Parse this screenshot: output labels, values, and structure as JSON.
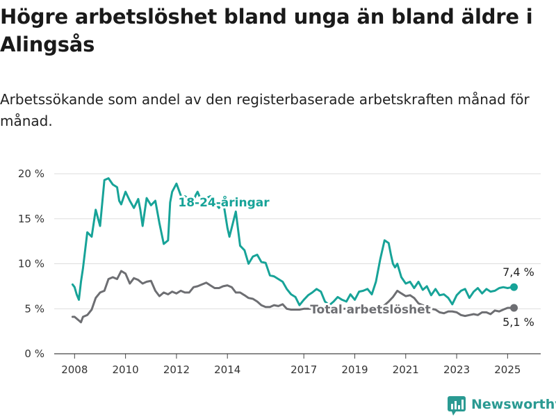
{
  "title": "Högre arbetslöshet bland unga än bland äldre i Alingsås",
  "subtitle": "Arbetssökande som andel av den registerbaserade arbetskraften månad för månad.",
  "brand": "Newsworthy",
  "colors": {
    "youth": "#17a398",
    "total": "#6d6e72",
    "grid": "#dddddd"
  },
  "chart_data": {
    "type": "line",
    "x_unit": "decimal year",
    "y_unit": "%",
    "ylim": [
      0,
      20
    ],
    "y_ticks": [
      0,
      5,
      10,
      15,
      20
    ],
    "y_tick_labels": [
      "0 %",
      "5 %",
      "10 %",
      "15 %",
      "20 %"
    ],
    "x_ticks": [
      2008,
      2010,
      2012,
      2014,
      2017,
      2019,
      2021,
      2023,
      2025
    ],
    "grid": true,
    "series": [
      {
        "name": "18-24-åringar",
        "color_key": "youth",
        "end_label": "7,4 %",
        "x": [
          2007.92,
          2008.0,
          2008.08,
          2008.17,
          2008.25,
          2008.33,
          2008.5,
          2008.67,
          2008.83,
          2009.0,
          2009.17,
          2009.33,
          2009.5,
          2009.67,
          2009.75,
          2009.83,
          2010.0,
          2010.17,
          2010.33,
          2010.5,
          2010.58,
          2010.67,
          2010.83,
          2011.0,
          2011.17,
          2011.33,
          2011.5,
          2011.67,
          2011.75,
          2011.83,
          2012.0,
          2012.17,
          2012.25,
          2012.33,
          2012.5,
          2012.67,
          2012.75,
          2012.83,
          2013.0,
          2013.17,
          2013.33,
          2013.5,
          2013.67,
          2013.83,
          2014.0,
          2014.08,
          2014.17,
          2014.33,
          2014.5,
          2014.67,
          2014.83,
          2015.0,
          2015.17,
          2015.33,
          2015.5,
          2015.67,
          2015.83,
          2016.0,
          2016.17,
          2016.33,
          2016.5,
          2016.67,
          2016.83,
          2017.0,
          2017.17,
          2017.33,
          2017.5,
          2017.67,
          2017.83,
          2018.0,
          2018.17,
          2018.33,
          2018.5,
          2018.67,
          2018.83,
          2019.0,
          2019.17,
          2019.33,
          2019.5,
          2019.67,
          2019.83,
          2020.0,
          2020.17,
          2020.33,
          2020.42,
          2020.5,
          2020.58,
          2020.67,
          2020.83,
          2021.0,
          2021.17,
          2021.33,
          2021.5,
          2021.67,
          2021.83,
          2022.0,
          2022.17,
          2022.33,
          2022.5,
          2022.67,
          2022.83,
          2023.0,
          2023.17,
          2023.33,
          2023.5,
          2023.67,
          2023.83,
          2024.0,
          2024.17,
          2024.33,
          2024.5,
          2024.67,
          2024.83,
          2025.0,
          2025.17,
          2025.25
        ],
        "y": [
          7.7,
          7.4,
          6.6,
          6.0,
          8.0,
          9.5,
          13.5,
          13.0,
          16.0,
          14.2,
          19.3,
          19.5,
          18.8,
          18.5,
          17.0,
          16.6,
          18.0,
          17.0,
          16.2,
          17.2,
          16.0,
          14.2,
          17.3,
          16.5,
          17.0,
          14.5,
          12.2,
          12.6,
          16.8,
          18.0,
          18.9,
          17.6,
          16.8,
          17.5,
          17.2,
          16.9,
          17.6,
          18.0,
          16.8,
          17.3,
          17.5,
          16.8,
          16.2,
          17.0,
          14.0,
          13.0,
          14.0,
          15.8,
          12.0,
          11.5,
          10.0,
          10.8,
          11.0,
          10.2,
          10.1,
          8.7,
          8.6,
          8.3,
          8.0,
          7.2,
          6.6,
          6.3,
          5.4,
          6.0,
          6.5,
          6.8,
          7.2,
          6.9,
          5.8,
          5.4,
          5.8,
          6.3,
          6.0,
          5.8,
          6.6,
          6.0,
          6.9,
          7.0,
          7.2,
          6.6,
          8.0,
          10.5,
          12.6,
          12.3,
          11.0,
          10.0,
          9.6,
          10.0,
          8.5,
          7.8,
          8.0,
          7.3,
          8.0,
          7.1,
          7.5,
          6.5,
          7.2,
          6.5,
          6.6,
          6.2,
          5.5,
          6.5,
          7.0,
          7.2,
          6.2,
          6.9,
          7.3,
          6.7,
          7.2,
          6.9,
          7.0,
          7.3,
          7.4,
          7.3,
          7.4,
          7.4
        ]
      },
      {
        "name": "Total arbetslöshet",
        "color_key": "total",
        "end_label": "5,1 %",
        "x": [
          2007.92,
          2008.0,
          2008.17,
          2008.25,
          2008.33,
          2008.5,
          2008.67,
          2008.83,
          2009.0,
          2009.17,
          2009.33,
          2009.5,
          2009.67,
          2009.83,
          2010.0,
          2010.17,
          2010.33,
          2010.5,
          2010.67,
          2010.83,
          2011.0,
          2011.17,
          2011.33,
          2011.5,
          2011.67,
          2011.83,
          2012.0,
          2012.17,
          2012.33,
          2012.5,
          2012.67,
          2012.83,
          2013.0,
          2013.17,
          2013.33,
          2013.5,
          2013.67,
          2013.83,
          2014.0,
          2014.17,
          2014.33,
          2014.5,
          2014.67,
          2014.83,
          2015.0,
          2015.17,
          2015.33,
          2015.5,
          2015.67,
          2015.83,
          2016.0,
          2016.17,
          2016.33,
          2016.5,
          2016.67,
          2016.83,
          2017.0,
          2017.17,
          2017.33,
          2017.5,
          2017.67,
          2017.83,
          2018.0,
          2018.17,
          2018.33,
          2018.5,
          2018.67,
          2018.83,
          2019.0,
          2019.17,
          2019.33,
          2019.5,
          2019.67,
          2019.83,
          2020.0,
          2020.17,
          2020.33,
          2020.5,
          2020.67,
          2020.83,
          2021.0,
          2021.17,
          2021.33,
          2021.5,
          2021.67,
          2021.83,
          2022.0,
          2022.17,
          2022.33,
          2022.5,
          2022.67,
          2022.83,
          2023.0,
          2023.17,
          2023.33,
          2023.5,
          2023.67,
          2023.83,
          2024.0,
          2024.17,
          2024.33,
          2024.5,
          2024.67,
          2024.83,
          2025.0,
          2025.17,
          2025.25
        ],
        "y": [
          4.1,
          4.1,
          3.7,
          3.5,
          4.1,
          4.3,
          4.9,
          6.2,
          6.8,
          7.0,
          8.3,
          8.5,
          8.3,
          9.2,
          8.9,
          7.8,
          8.4,
          8.2,
          7.8,
          8.0,
          8.1,
          7.0,
          6.4,
          6.8,
          6.6,
          6.9,
          6.7,
          7.0,
          6.8,
          6.8,
          7.4,
          7.5,
          7.7,
          7.9,
          7.6,
          7.3,
          7.3,
          7.5,
          7.6,
          7.4,
          6.8,
          6.8,
          6.5,
          6.2,
          6.1,
          5.8,
          5.4,
          5.2,
          5.2,
          5.4,
          5.3,
          5.5,
          5.0,
          4.9,
          4.9,
          4.9,
          5.0,
          5.0,
          5.0,
          5.0,
          5.0,
          5.0,
          5.0,
          5.0,
          5.0,
          5.0,
          5.0,
          5.0,
          5.0,
          5.0,
          5.0,
          5.0,
          5.0,
          5.0,
          5.0,
          5.4,
          5.8,
          6.3,
          7.0,
          6.7,
          6.4,
          6.5,
          6.2,
          5.6,
          5.4,
          5.2,
          5.0,
          4.9,
          4.6,
          4.5,
          4.7,
          4.7,
          4.6,
          4.3,
          4.2,
          4.3,
          4.4,
          4.3,
          4.6,
          4.6,
          4.4,
          4.8,
          4.7,
          4.9,
          5.1,
          5.1,
          5.1
        ]
      }
    ]
  }
}
